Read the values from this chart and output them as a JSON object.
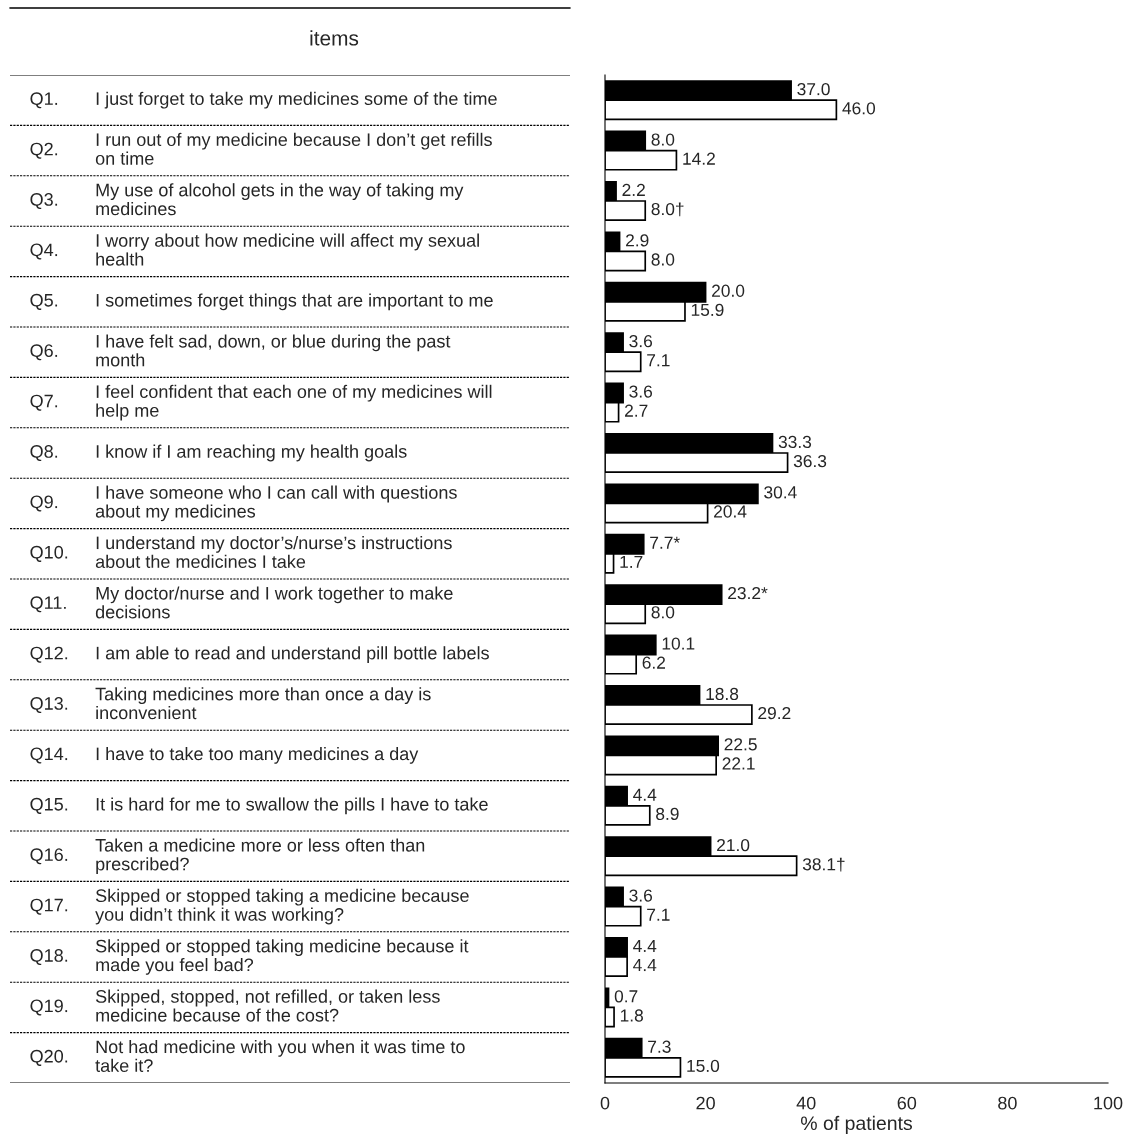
{
  "chart_data": {
    "type": "bar",
    "orientation": "horizontal",
    "title": "items",
    "xlabel": "% of patients",
    "categories": [
      "Q1. I just forget to take my medicines some of the time",
      "Q2. I run out of my medicine because I don’t get refills\non time",
      "Q3. My use of alcohol gets in the way of taking my\nmedicines",
      "Q4. I worry about how medicine will affect my sexual\nhealth",
      "Q5. I sometimes forget things that are important to me",
      "Q6. I have felt sad, down, or blue during the past\nmonth",
      "Q7. I feel confident that each one of my medicines will\nhelp me",
      "Q8. I know if I am reaching my health goals",
      "Q9. I have someone who I can call with questions\nabout my medicines",
      "Q10. I understand my doctor’s/nurse’s instructions\nabout the medicines I take",
      "Q11. My doctor/nurse and I work together to make\ndecisions",
      "Q12. I am able to read and understand pill bottle labels",
      "Q13. Taking medicines more than once a day is\ninconvenient",
      "Q14. I have to take too many medicines a day",
      "Q15. It is hard for me to swallow the pills I have to take",
      "Q16. Taken a medicine more or less often than\nprescribed?",
      "Q17. Skipped or stopped taking a medicine because\nyou didn’t think it was working?",
      "Q18. Skipped or stopped taking medicine because it\nmade you feel bad?",
      "Q19. Skipped, stopped, not refilled, or taken less\nmedicine because of the cost?",
      "Q20. Not had medicine with you when it was time to\ntake it?"
    ],
    "series": [
      {
        "color": "#000000",
        "values": [
          37.0,
          8.0,
          2.2,
          2.9,
          20.0,
          3.6,
          3.6,
          33.3,
          30.4,
          7.7,
          23.2,
          10.1,
          18.8,
          22.5,
          4.4,
          21.0,
          3.6,
          4.4,
          0.7,
          7.3
        ],
        "value_labels": [
          "37.0",
          "8.0",
          "2.2",
          "2.9",
          "20.0",
          "3.6",
          "3.6",
          "33.3",
          "30.4",
          "7.7*",
          "23.2*",
          "10.1",
          "18.8",
          "22.5",
          "4.4",
          "21.0",
          "3.6",
          "4.4",
          "0.7",
          "7.3"
        ]
      },
      {
        "color": "#ffffff",
        "values": [
          46.0,
          14.2,
          8.0,
          8.0,
          15.9,
          7.1,
          2.7,
          36.3,
          20.4,
          1.7,
          8.0,
          6.2,
          29.2,
          22.1,
          8.9,
          38.1,
          7.1,
          4.4,
          1.8,
          15.0
        ],
        "value_labels": [
          "46.0",
          "14.2",
          "8.0†",
          "8.0",
          "15.9",
          "7.1",
          "2.7",
          "36.3",
          "20.4",
          "1.7",
          "8.0",
          "6.2",
          "29.2",
          "22.1",
          "8.9",
          "38.1†",
          "7.1",
          "4.4",
          "1.8",
          "15.0"
        ]
      }
    ],
    "xlim": [
      0,
      100
    ],
    "xticks": [
      0,
      20,
      40,
      60,
      80,
      100
    ],
    "tick_labels": "x",
    "grid": false,
    "legend": false
  }
}
